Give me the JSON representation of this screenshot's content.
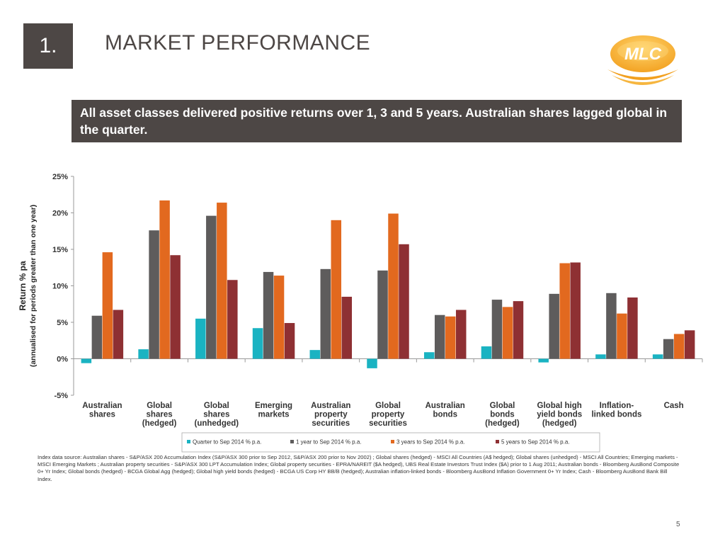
{
  "header": {
    "section_number": "1.",
    "title": "MARKET PERFORMANCE",
    "logo_text": "MLC"
  },
  "banner": {
    "text": "All asset classes delivered positive returns over 1, 3 and 5 years. Australian shares lagged global in the quarter."
  },
  "chart_data": {
    "type": "bar",
    "ylabel": "Return % pa",
    "ylabel_sub": "(annualised for periods greater than one year)",
    "ylim": [
      -5,
      25
    ],
    "yticks": [
      -5,
      0,
      5,
      10,
      15,
      20,
      25
    ],
    "ytick_labels": [
      "-5%",
      "0%",
      "5%",
      "10%",
      "15%",
      "20%",
      "25%"
    ],
    "grid": false,
    "legend_position": "bottom",
    "categories": [
      [
        "Australian",
        "shares"
      ],
      [
        "Global",
        "shares",
        "(hedged)"
      ],
      [
        "Global",
        "shares",
        "(unhedged)"
      ],
      [
        "Emerging",
        "markets"
      ],
      [
        "Australian",
        "property",
        "securities"
      ],
      [
        "Global",
        "property",
        "securities"
      ],
      [
        "Australian",
        "bonds"
      ],
      [
        "Global",
        "bonds",
        "(hedged)"
      ],
      [
        "Global high",
        "yield bonds",
        "(hedged)"
      ],
      [
        "Inflation-",
        "linked bonds"
      ],
      [
        "Cash"
      ]
    ],
    "series": [
      {
        "name": "Quarter to Sep 2014 % p.a.",
        "color": "#1ab3c2",
        "values": [
          -0.6,
          1.3,
          5.5,
          4.2,
          1.2,
          -1.3,
          0.9,
          1.7,
          -0.5,
          0.6,
          0.6
        ]
      },
      {
        "name": "1 year to Sep 2014 % p.a.",
        "color": "#5e5c5c",
        "values": [
          5.9,
          17.6,
          19.6,
          11.9,
          12.3,
          12.1,
          6.0,
          8.1,
          8.9,
          9.0,
          2.7
        ]
      },
      {
        "name": "3 years to Sep 2014 % p.a.",
        "color": "#e2691f",
        "values": [
          14.6,
          21.7,
          21.4,
          11.4,
          19.0,
          19.9,
          5.8,
          7.1,
          13.1,
          6.2,
          3.4
        ]
      },
      {
        "name": "5 years to Sep 2014 % p.a.",
        "color": "#8e3033",
        "values": [
          6.7,
          14.2,
          10.8,
          4.9,
          8.5,
          15.7,
          6.7,
          7.9,
          13.2,
          8.4,
          3.9
        ]
      }
    ]
  },
  "footer": {
    "source_note": "Index data source: Australian  shares - S&P/ASX 200 Accumulation Index (S&P/ASX 300 prior to Sep 2012, S&P/ASX 200 prior to Nov 2002) ; Global shares (hedged) - MSCI All Countries (A$ hedged); Global shares (unhedged) - MSCI All Countries; Emerging markets - MSCI Emerging Markets ; Australian property securities - S&P/ASX 300 LPT Accumulation Index; Global property securities - EPRA/NAREIT ($A hedged), UBS Real Estate Investors Trust Index ($A) prior to 1 Aug 2011;  Australian bonds - Bloomberg AusBond  Composite 0+ Yr Index; Global bonds (hedged) - BCGA Global Agg (hedged); Global high yield bonds (hedged) - BCGA US Corp HY BB/B (hedged); Australian inflation-linked bonds - Bloomberg  AusBond  Inflation Government 0+ Yr Index; Cash - Bloomberg AusBond  Bank Bill Index.",
    "page_number": "5"
  }
}
